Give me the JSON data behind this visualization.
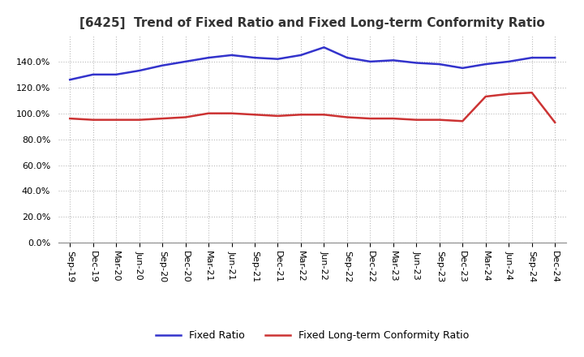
{
  "title": "[6425]  Trend of Fixed Ratio and Fixed Long-term Conformity Ratio",
  "x_labels": [
    "Sep-19",
    "Dec-19",
    "Mar-20",
    "Jun-20",
    "Sep-20",
    "Dec-20",
    "Mar-21",
    "Jun-21",
    "Sep-21",
    "Dec-21",
    "Mar-22",
    "Jun-22",
    "Sep-22",
    "Dec-22",
    "Mar-23",
    "Jun-23",
    "Sep-23",
    "Dec-23",
    "Mar-24",
    "Jun-24",
    "Sep-24",
    "Dec-24"
  ],
  "fixed_ratio": [
    126,
    130,
    130,
    133,
    137,
    140,
    143,
    145,
    143,
    142,
    145,
    151,
    143,
    140,
    141,
    139,
    138,
    135,
    138,
    140,
    143,
    143
  ],
  "fixed_lt_ratio": [
    96,
    95,
    95,
    95,
    96,
    97,
    100,
    100,
    99,
    98,
    99,
    99,
    97,
    96,
    96,
    95,
    95,
    94,
    113,
    115,
    116,
    93
  ],
  "ylim": [
    0,
    160
  ],
  "ytick_step": 20,
  "fixed_ratio_color": "#3333cc",
  "fixed_lt_ratio_color": "#cc3333",
  "legend_fixed": "Fixed Ratio",
  "legend_lt": "Fixed Long-term Conformity Ratio",
  "background_color": "#ffffff",
  "grid_color": "#bbbbbb",
  "title_color": "#333333",
  "title_fontsize": 11,
  "tick_fontsize": 8,
  "legend_fontsize": 9,
  "line_width": 1.8
}
